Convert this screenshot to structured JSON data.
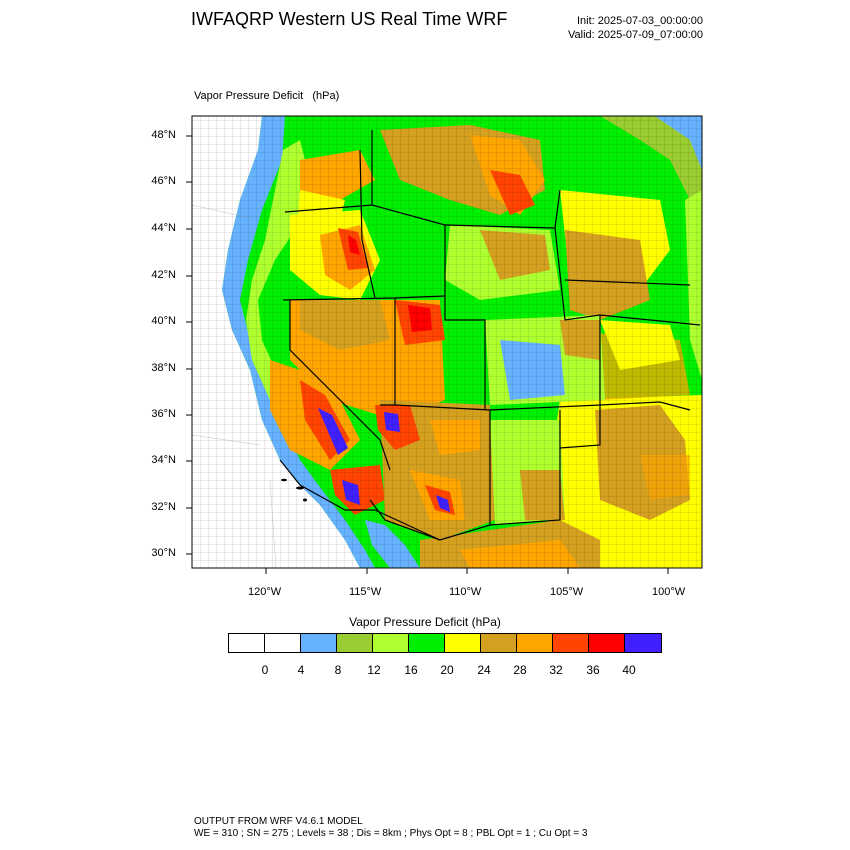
{
  "header": {
    "title": "IWFAQRP Western US Real Time WRF",
    "init": "Init: 2025-07-03_00:00:00",
    "valid": "Valid: 2025-07-09_07:00:00"
  },
  "map": {
    "subtitle": "Vapor Pressure Deficit   (hPa)",
    "lat_labels": [
      "48°N",
      "46°N",
      "44°N",
      "42°N",
      "40°N",
      "38°N",
      "36°N",
      "34°N",
      "32°N",
      "30°N"
    ],
    "lon_labels": [
      "120°W",
      "115°W",
      "110°W",
      "105°W",
      "100°W"
    ]
  },
  "colorbar": {
    "title": "Vapor Pressure Deficit  (hPa)",
    "levels": [
      "0",
      "4",
      "8",
      "12",
      "16",
      "20",
      "24",
      "28",
      "32",
      "36",
      "40"
    ],
    "colors": [
      "#ffffff",
      "#ffffff",
      "#66b2ff",
      "#9acd32",
      "#adff2f",
      "#00ee00",
      "#ffff00",
      "#d4a020",
      "#ffa500",
      "#ff4500",
      "#ff0000",
      "#4020ff"
    ]
  },
  "footer": {
    "line1": "OUTPUT FROM WRF V4.6.1 MODEL",
    "line2": "WE = 310 ; SN = 275 ; Levels = 38 ; Dis = 8km ; Phys Opt = 8 ; PBL Opt = 1 ; Cu Opt = 3"
  }
}
